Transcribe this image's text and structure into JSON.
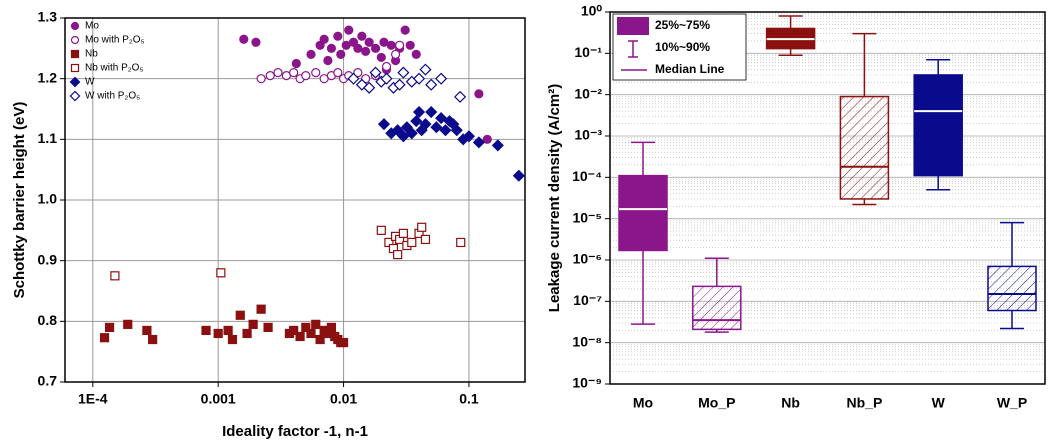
{
  "chart_data": [
    {
      "type": "scatter",
      "xlabel": "Ideality factor -1, n-1",
      "ylabel": "Schottky barrier height (eV)",
      "xlog": true,
      "xlim": [
        6e-05,
        0.28
      ],
      "ylim": [
        0.7,
        1.3
      ],
      "xticks": [
        {
          "value": 0.0001,
          "label": "1E-4"
        },
        0.001,
        0.01,
        0.1
      ],
      "yticks": [
        0.7,
        0.8,
        0.9,
        {
          "value": 1,
          "label": "1.0"
        },
        1.1,
        1.2,
        1.3
      ],
      "grid": true,
      "legend": "upper left",
      "series": [
        {
          "name": "Mo",
          "color": "#8b168b",
          "marker": "circle",
          "filled": true,
          "x": [
            0.0016,
            0.002,
            0.0042,
            0.0055,
            0.0065,
            0.007,
            0.0075,
            0.008,
            0.009,
            0.0095,
            0.0105,
            0.011,
            0.012,
            0.013,
            0.014,
            0.015,
            0.016,
            0.018,
            0.02,
            0.021,
            0.022,
            0.024,
            0.026,
            0.028,
            0.031,
            0.034,
            0.038,
            0.12,
            0.14
          ],
          "values": [
            1.265,
            1.26,
            1.225,
            1.24,
            1.255,
            1.265,
            1.23,
            1.25,
            1.27,
            1.24,
            1.255,
            1.28,
            1.26,
            1.25,
            1.27,
            1.245,
            1.26,
            1.25,
            1.235,
            1.26,
            1.215,
            1.255,
            1.23,
            1.25,
            1.28,
            1.255,
            1.24,
            1.175,
            1.1
          ]
        },
        {
          "name": "Mo with P₂O₅",
          "color": "#8b168b",
          "marker": "circle",
          "filled": false,
          "x": [
            0.0022,
            0.0026,
            0.003,
            0.0035,
            0.004,
            0.0045,
            0.005,
            0.006,
            0.007,
            0.008,
            0.009,
            0.01,
            0.011,
            0.013,
            0.015,
            0.018,
            0.022,
            0.026,
            0.028
          ],
          "values": [
            1.2,
            1.205,
            1.21,
            1.205,
            1.21,
            1.2,
            1.205,
            1.21,
            1.2,
            1.205,
            1.21,
            1.2,
            1.205,
            1.21,
            1.2,
            1.205,
            1.22,
            1.24,
            1.255
          ]
        },
        {
          "name": "Nb",
          "color": "#8b1010",
          "marker": "square",
          "filled": true,
          "x": [
            0.000124,
            0.000136,
            0.00019,
            0.00027,
            0.0003,
            0.0008,
            0.001,
            0.0012,
            0.0013,
            0.0015,
            0.0017,
            0.0019,
            0.0022,
            0.0025,
            0.0037,
            0.004,
            0.0045,
            0.005,
            0.0055,
            0.006,
            0.0065,
            0.007,
            0.0075,
            0.008,
            0.0085,
            0.009,
            0.0095,
            0.01
          ],
          "values": [
            0.773,
            0.79,
            0.795,
            0.785,
            0.77,
            0.785,
            0.78,
            0.785,
            0.77,
            0.81,
            0.78,
            0.795,
            0.82,
            0.79,
            0.78,
            0.785,
            0.775,
            0.79,
            0.78,
            0.795,
            0.77,
            0.785,
            0.78,
            0.79,
            0.775,
            0.77,
            0.765,
            0.765
          ]
        },
        {
          "name": "Nb with P₂O₅",
          "color": "#8b1010",
          "marker": "square",
          "filled": false,
          "x": [
            0.00015,
            0.00105,
            0.02,
            0.023,
            0.025,
            0.026,
            0.027,
            0.028,
            0.03,
            0.032,
            0.035,
            0.04,
            0.042,
            0.045,
            0.086
          ],
          "values": [
            0.875,
            0.88,
            0.95,
            0.93,
            0.92,
            0.94,
            0.91,
            0.935,
            0.945,
            0.925,
            0.93,
            0.945,
            0.955,
            0.935,
            0.93
          ]
        },
        {
          "name": "W",
          "color": "#0a0a8c",
          "marker": "diamond",
          "filled": true,
          "x": [
            0.021,
            0.024,
            0.027,
            0.03,
            0.032,
            0.035,
            0.038,
            0.04,
            0.042,
            0.045,
            0.05,
            0.055,
            0.06,
            0.065,
            0.07,
            0.075,
            0.08,
            0.09,
            0.1,
            0.12,
            0.17,
            0.25
          ],
          "values": [
            1.125,
            1.11,
            1.115,
            1.105,
            1.12,
            1.11,
            1.13,
            1.145,
            1.115,
            1.125,
            1.145,
            1.12,
            1.135,
            1.115,
            1.13,
            1.125,
            1.115,
            1.1,
            1.105,
            1.095,
            1.09,
            1.04
          ]
        },
        {
          "name": "W with P₂O₅",
          "color": "#0a0a8c",
          "marker": "diamond",
          "filled": false,
          "x": [
            0.012,
            0.014,
            0.016,
            0.018,
            0.02,
            0.022,
            0.025,
            0.028,
            0.03,
            0.035,
            0.04,
            0.045,
            0.05,
            0.06,
            0.085
          ],
          "values": [
            1.2,
            1.19,
            1.185,
            1.21,
            1.195,
            1.2,
            1.185,
            1.19,
            1.21,
            1.195,
            1.2,
            1.215,
            1.19,
            1.2,
            1.17
          ]
        }
      ]
    },
    {
      "type": "box",
      "ylabel": "Leakage current density (A/cm²)",
      "ylog": true,
      "ylim": [
        1e-09,
        1
      ],
      "yticks": [
        {
          "value": 1e-09,
          "label": "10⁻⁹"
        },
        {
          "value": 1e-08,
          "label": "10⁻⁸"
        },
        {
          "value": 1e-07,
          "label": "10⁻⁷"
        },
        {
          "value": 1e-06,
          "label": "10⁻⁶"
        },
        {
          "value": 1e-05,
          "label": "10⁻⁵"
        },
        {
          "value": 0.0001,
          "label": "10⁻⁴"
        },
        {
          "value": 0.001,
          "label": "10⁻³"
        },
        {
          "value": 0.01,
          "label": "10⁻²"
        },
        {
          "value": 0.1,
          "label": "10⁻¹"
        },
        {
          "value": 1,
          "label": "10⁰"
        }
      ],
      "minor_grid": true,
      "categories": [
        "Mo",
        "Mo_P",
        "Nb",
        "Nb_P",
        "W",
        "W_P"
      ],
      "colors": [
        "#8b168b",
        "#8b168b",
        "#8b1010",
        "#8b1010",
        "#0a0a8c",
        "#0a0a8c"
      ],
      "hatched": [
        false,
        true,
        false,
        true,
        false,
        true
      ],
      "p10": [
        2.8e-08,
        1.8e-08,
        0.09,
        2.2e-05,
        5e-05,
        2.2e-08
      ],
      "q1": [
        1.7e-06,
        2.1e-08,
        0.13,
        3e-05,
        0.00011,
        6e-08
      ],
      "median": [
        1.7e-05,
        3.5e-08,
        0.22,
        0.00018,
        0.004,
        1.5e-07
      ],
      "q3": [
        0.00011,
        2.3e-07,
        0.4,
        0.009,
        0.03,
        7e-07
      ],
      "p90": [
        0.0007,
        1.1e-06,
        0.8,
        0.3,
        0.07,
        8e-06
      ],
      "legend": "upper left",
      "legend_color": "#8b168b",
      "legend_labels": [
        "25%~75%",
        "10%~90%",
        "Median Line"
      ]
    }
  ]
}
